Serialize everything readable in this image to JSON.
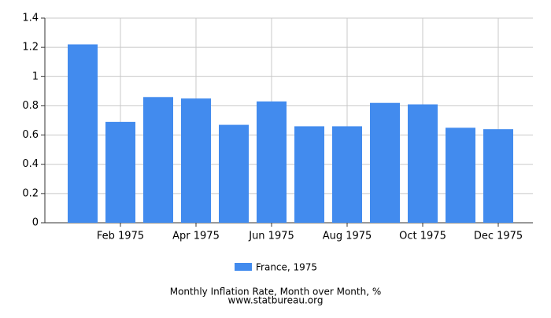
{
  "chart_data": {
    "type": "bar",
    "title": "Monthly Inflation Rate, Month over Month, %",
    "source": "www.statbureau.org",
    "categories": [
      null,
      "Feb 1975",
      null,
      "Apr 1975",
      null,
      "Jun 1975",
      null,
      "Aug 1975",
      null,
      "Oct 1975",
      null,
      "Dec 1975"
    ],
    "series": [
      {
        "name": "France, 1975",
        "color": "#428bee",
        "values": [
          1.22,
          0.69,
          0.86,
          0.85,
          0.67,
          0.83,
          0.66,
          0.66,
          0.82,
          0.81,
          0.65,
          0.64
        ]
      }
    ],
    "ylim": [
      0,
      1.4
    ],
    "yticks": [
      0,
      0.2,
      0.4,
      0.6,
      0.8,
      1,
      1.2,
      1.4
    ],
    "grid": true
  }
}
